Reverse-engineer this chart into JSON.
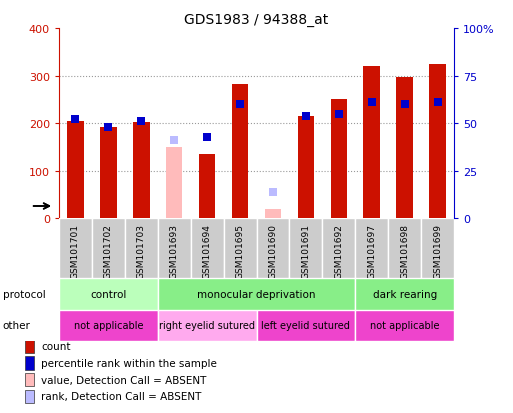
{
  "title": "GDS1983 / 94388_at",
  "samples": [
    "GSM101701",
    "GSM101702",
    "GSM101703",
    "GSM101693",
    "GSM101694",
    "GSM101695",
    "GSM101690",
    "GSM101691",
    "GSM101692",
    "GSM101697",
    "GSM101698",
    "GSM101699"
  ],
  "count_present": [
    205,
    193,
    203,
    0,
    135,
    283,
    0,
    215,
    250,
    320,
    297,
    325
  ],
  "count_absent": [
    0,
    0,
    0,
    150,
    0,
    0,
    20,
    0,
    0,
    0,
    0,
    0
  ],
  "rank_present": [
    52,
    48,
    51,
    0,
    43,
    60,
    0,
    54,
    55,
    61,
    60,
    61
  ],
  "rank_absent": [
    0,
    0,
    0,
    41,
    0,
    0,
    14,
    0,
    0,
    0,
    0,
    0
  ],
  "ylim_left": [
    0,
    400
  ],
  "ylim_right": [
    0,
    100
  ],
  "yticks_left": [
    0,
    100,
    200,
    300,
    400
  ],
  "ytick_labels_left": [
    "0",
    "100",
    "200",
    "300",
    "400"
  ],
  "yticks_right": [
    0,
    25,
    50,
    75,
    100
  ],
  "ytick_labels_right": [
    "0",
    "25",
    "50",
    "75",
    "100%"
  ],
  "color_count": "#cc1100",
  "color_rank": "#0000cc",
  "color_count_absent": "#ffbbbb",
  "color_rank_absent": "#bbbbff",
  "protocol_groups": [
    {
      "label": "control",
      "start": 0,
      "end": 3,
      "color": "#bbffbb"
    },
    {
      "label": "monocular deprivation",
      "start": 3,
      "end": 9,
      "color": "#88ee88"
    },
    {
      "label": "dark rearing",
      "start": 9,
      "end": 12,
      "color": "#88ee88"
    }
  ],
  "other_groups": [
    {
      "label": "not applicable",
      "start": 0,
      "end": 3,
      "color": "#ee44cc"
    },
    {
      "label": "right eyelid sutured",
      "start": 3,
      "end": 6,
      "color": "#ffaaee"
    },
    {
      "label": "left eyelid sutured",
      "start": 6,
      "end": 9,
      "color": "#ee44cc"
    },
    {
      "label": "not applicable",
      "start": 9,
      "end": 12,
      "color": "#ee44cc"
    }
  ],
  "bar_width": 0.5,
  "marker_size": 6,
  "background_color": "#ffffff",
  "grid_color": "#999999",
  "xtick_bg": "#cccccc"
}
